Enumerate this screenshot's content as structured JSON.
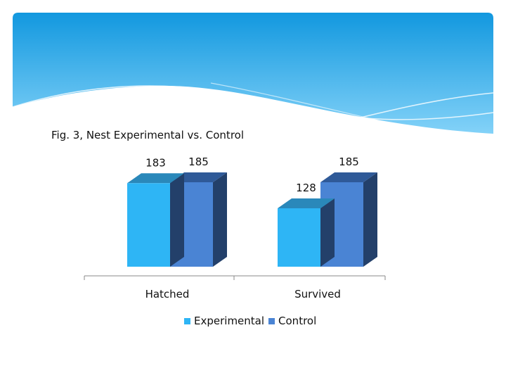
{
  "chart_data": {
    "type": "bar",
    "title": "Fig. 3, Nest Experimental vs. Control",
    "categories": [
      "Hatched",
      "Survived"
    ],
    "series": [
      {
        "name": "Experimental",
        "values": [
          183,
          128
        ],
        "labels": [
          "183",
          "128"
        ]
      },
      {
        "name": "Control",
        "values": [
          185,
          185
        ],
        "labels": [
          "185",
          "185"
        ]
      }
    ],
    "xlabel": "",
    "ylabel": "",
    "ylim": [
      0,
      185
    ],
    "grid": false,
    "legend_position": "bottom",
    "three_d": true
  },
  "colors": {
    "experimental_front": "#2eb5f5",
    "experimental_top": "#2a88ba",
    "control_front": "#4a84d4",
    "control_top": "#2f5a98",
    "side": "#23406a",
    "banner_top": "#1a9ae0",
    "banner_bottom": "#7cd0f8"
  }
}
